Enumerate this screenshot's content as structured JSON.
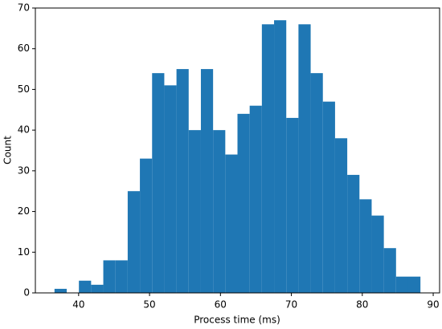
{
  "chart_data": {
    "type": "histogram",
    "xlabel": "Process time (ms)",
    "ylabel": "Count",
    "color": "#1f77b4",
    "bins": [
      36.6,
      38.32,
      40.04,
      41.76,
      43.48,
      45.2,
      46.92,
      48.64,
      50.36,
      52.08,
      53.8,
      55.52,
      57.24,
      58.96,
      60.68,
      62.4,
      64.12,
      65.84,
      67.56,
      69.28,
      71.0,
      72.72,
      74.44,
      76.16,
      77.88,
      79.6,
      81.32,
      83.04,
      84.76,
      86.48,
      88.2
    ],
    "values": [
      1,
      0,
      3,
      2,
      8,
      8,
      25,
      33,
      54,
      51,
      55,
      40,
      55,
      40,
      34,
      44,
      46,
      66,
      67,
      43,
      66,
      54,
      47,
      38,
      29,
      23,
      19,
      11,
      4,
      4
    ],
    "xlim": [
      33.9,
      90.9
    ],
    "xticks": [
      40,
      50,
      60,
      70,
      80,
      90
    ],
    "ylim": [
      0,
      70
    ],
    "yticks": [
      0,
      10,
      20,
      30,
      40,
      50,
      60,
      70
    ]
  }
}
